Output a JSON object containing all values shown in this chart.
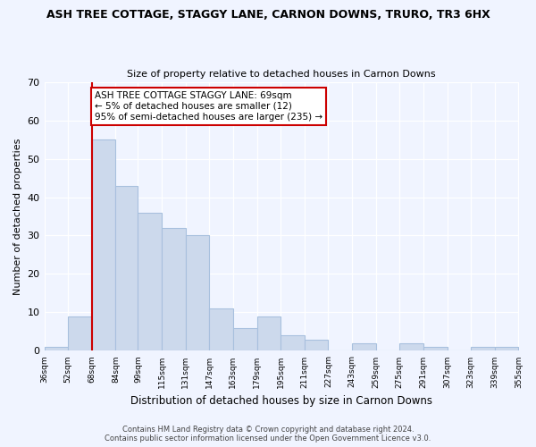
{
  "title": "ASH TREE COTTAGE, STAGGY LANE, CARNON DOWNS, TRURO, TR3 6HX",
  "subtitle": "Size of property relative to detached houses in Carnon Downs",
  "xlabel": "Distribution of detached houses by size in Carnon Downs",
  "ylabel": "Number of detached properties",
  "bin_edges": [
    36,
    52,
    68,
    84,
    99,
    115,
    131,
    147,
    163,
    179,
    195,
    211,
    227,
    243,
    259,
    275,
    291,
    307,
    323,
    339,
    355
  ],
  "bin_labels": [
    "36sqm",
    "52sqm",
    "68sqm",
    "84sqm",
    "99sqm",
    "115sqm",
    "131sqm",
    "147sqm",
    "163sqm",
    "179sqm",
    "195sqm",
    "211sqm",
    "227sqm",
    "243sqm",
    "259sqm",
    "275sqm",
    "291sqm",
    "307sqm",
    "323sqm",
    "339sqm",
    "355sqm"
  ],
  "counts": [
    1,
    9,
    55,
    43,
    36,
    32,
    30,
    11,
    6,
    9,
    4,
    3,
    0,
    2,
    0,
    2,
    1,
    0,
    1,
    1
  ],
  "bar_facecolor": "#ccd9ec",
  "bar_edgecolor": "#a8c0de",
  "vline_x": 68,
  "vline_color": "#cc0000",
  "ylim": [
    0,
    70
  ],
  "yticks": [
    0,
    10,
    20,
    30,
    40,
    50,
    60,
    70
  ],
  "annotation_text": "ASH TREE COTTAGE STAGGY LANE: 69sqm\n← 5% of detached houses are smaller (12)\n95% of semi-detached houses are larger (235) →",
  "annotation_box_edgecolor": "#cc0000",
  "footer1": "Contains HM Land Registry data © Crown copyright and database right 2024.",
  "footer2": "Contains public sector information licensed under the Open Government Licence v3.0.",
  "bg_color": "#f0f4ff"
}
